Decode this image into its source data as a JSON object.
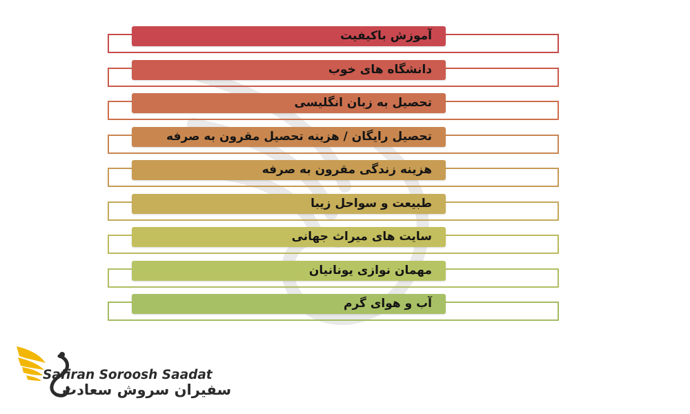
{
  "items": [
    {
      "label": "آموزش باکیفیت",
      "color": "#c9484f",
      "outline": "#c44a4a"
    },
    {
      "label": "دانشگاه های خوب",
      "color": "#cb5c4f",
      "outline": "#c85a4a"
    },
    {
      "label": "تحصیل به زبان انگلیسی",
      "color": "#cc714f",
      "outline": "#cc6e4c"
    },
    {
      "label": "تحصیل رایگان / هزینه تحصیل مقرون به صرفه",
      "color": "#c9874f",
      "outline": "#c98450"
    },
    {
      "label": "هزینه زندگی مقرون به صرفه",
      "color": "#c89c52",
      "outline": "#c69a55"
    },
    {
      "label": "طبیعت و سواحل زیبا",
      "color": "#c7ae59",
      "outline": "#c2a95a"
    },
    {
      "label": "سایت های میراث جهانی",
      "color": "#c4bf5e",
      "outline": "#bcb95e"
    },
    {
      "label": "مهمان نوازی یونانیان",
      "color": "#b7c463",
      "outline": "#b1bd62"
    },
    {
      "label": "آب و هوای گرم",
      "color": "#a8c065",
      "outline": "#a4bb62"
    }
  ],
  "brand": {
    "name_en": "Safiran Soroosh Saadat",
    "name_fa": "سفیران سروش سعادت",
    "accent": "#f2b705"
  }
}
